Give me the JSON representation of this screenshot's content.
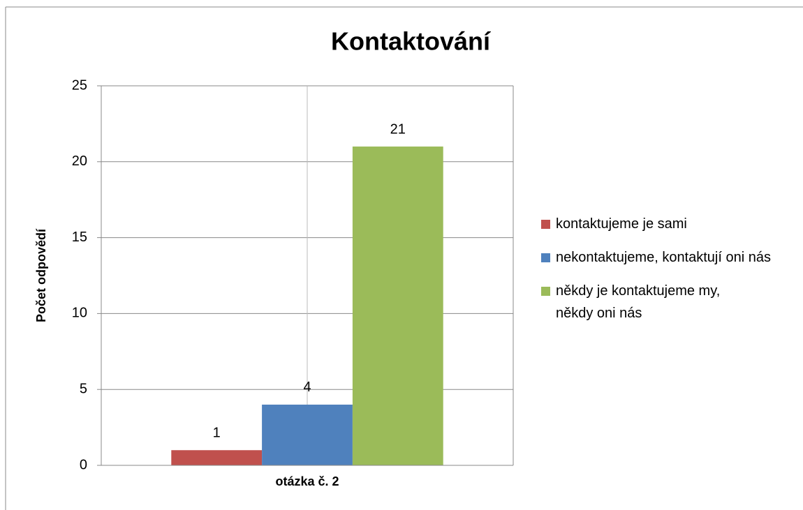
{
  "chart_data": {
    "type": "bar",
    "title": "Kontaktování",
    "y_label": "Počet odpovědí",
    "categories": [
      "otázka č. 2"
    ],
    "series": [
      {
        "name": "kontaktujeme je sami",
        "color": "#c0504d",
        "values": [
          1
        ]
      },
      {
        "name": "nekontaktujeme, kontaktují oni nás",
        "color": "#4f81bd",
        "values": [
          4
        ]
      },
      {
        "name": "někdy je kontaktujeme my, někdy oni nás",
        "color": "#9bbb59",
        "values": [
          21
        ]
      }
    ],
    "ylim": [
      0,
      25
    ],
    "yticks": [
      0,
      5,
      10,
      15,
      20,
      25
    ],
    "grid": true,
    "legend": "right"
  }
}
